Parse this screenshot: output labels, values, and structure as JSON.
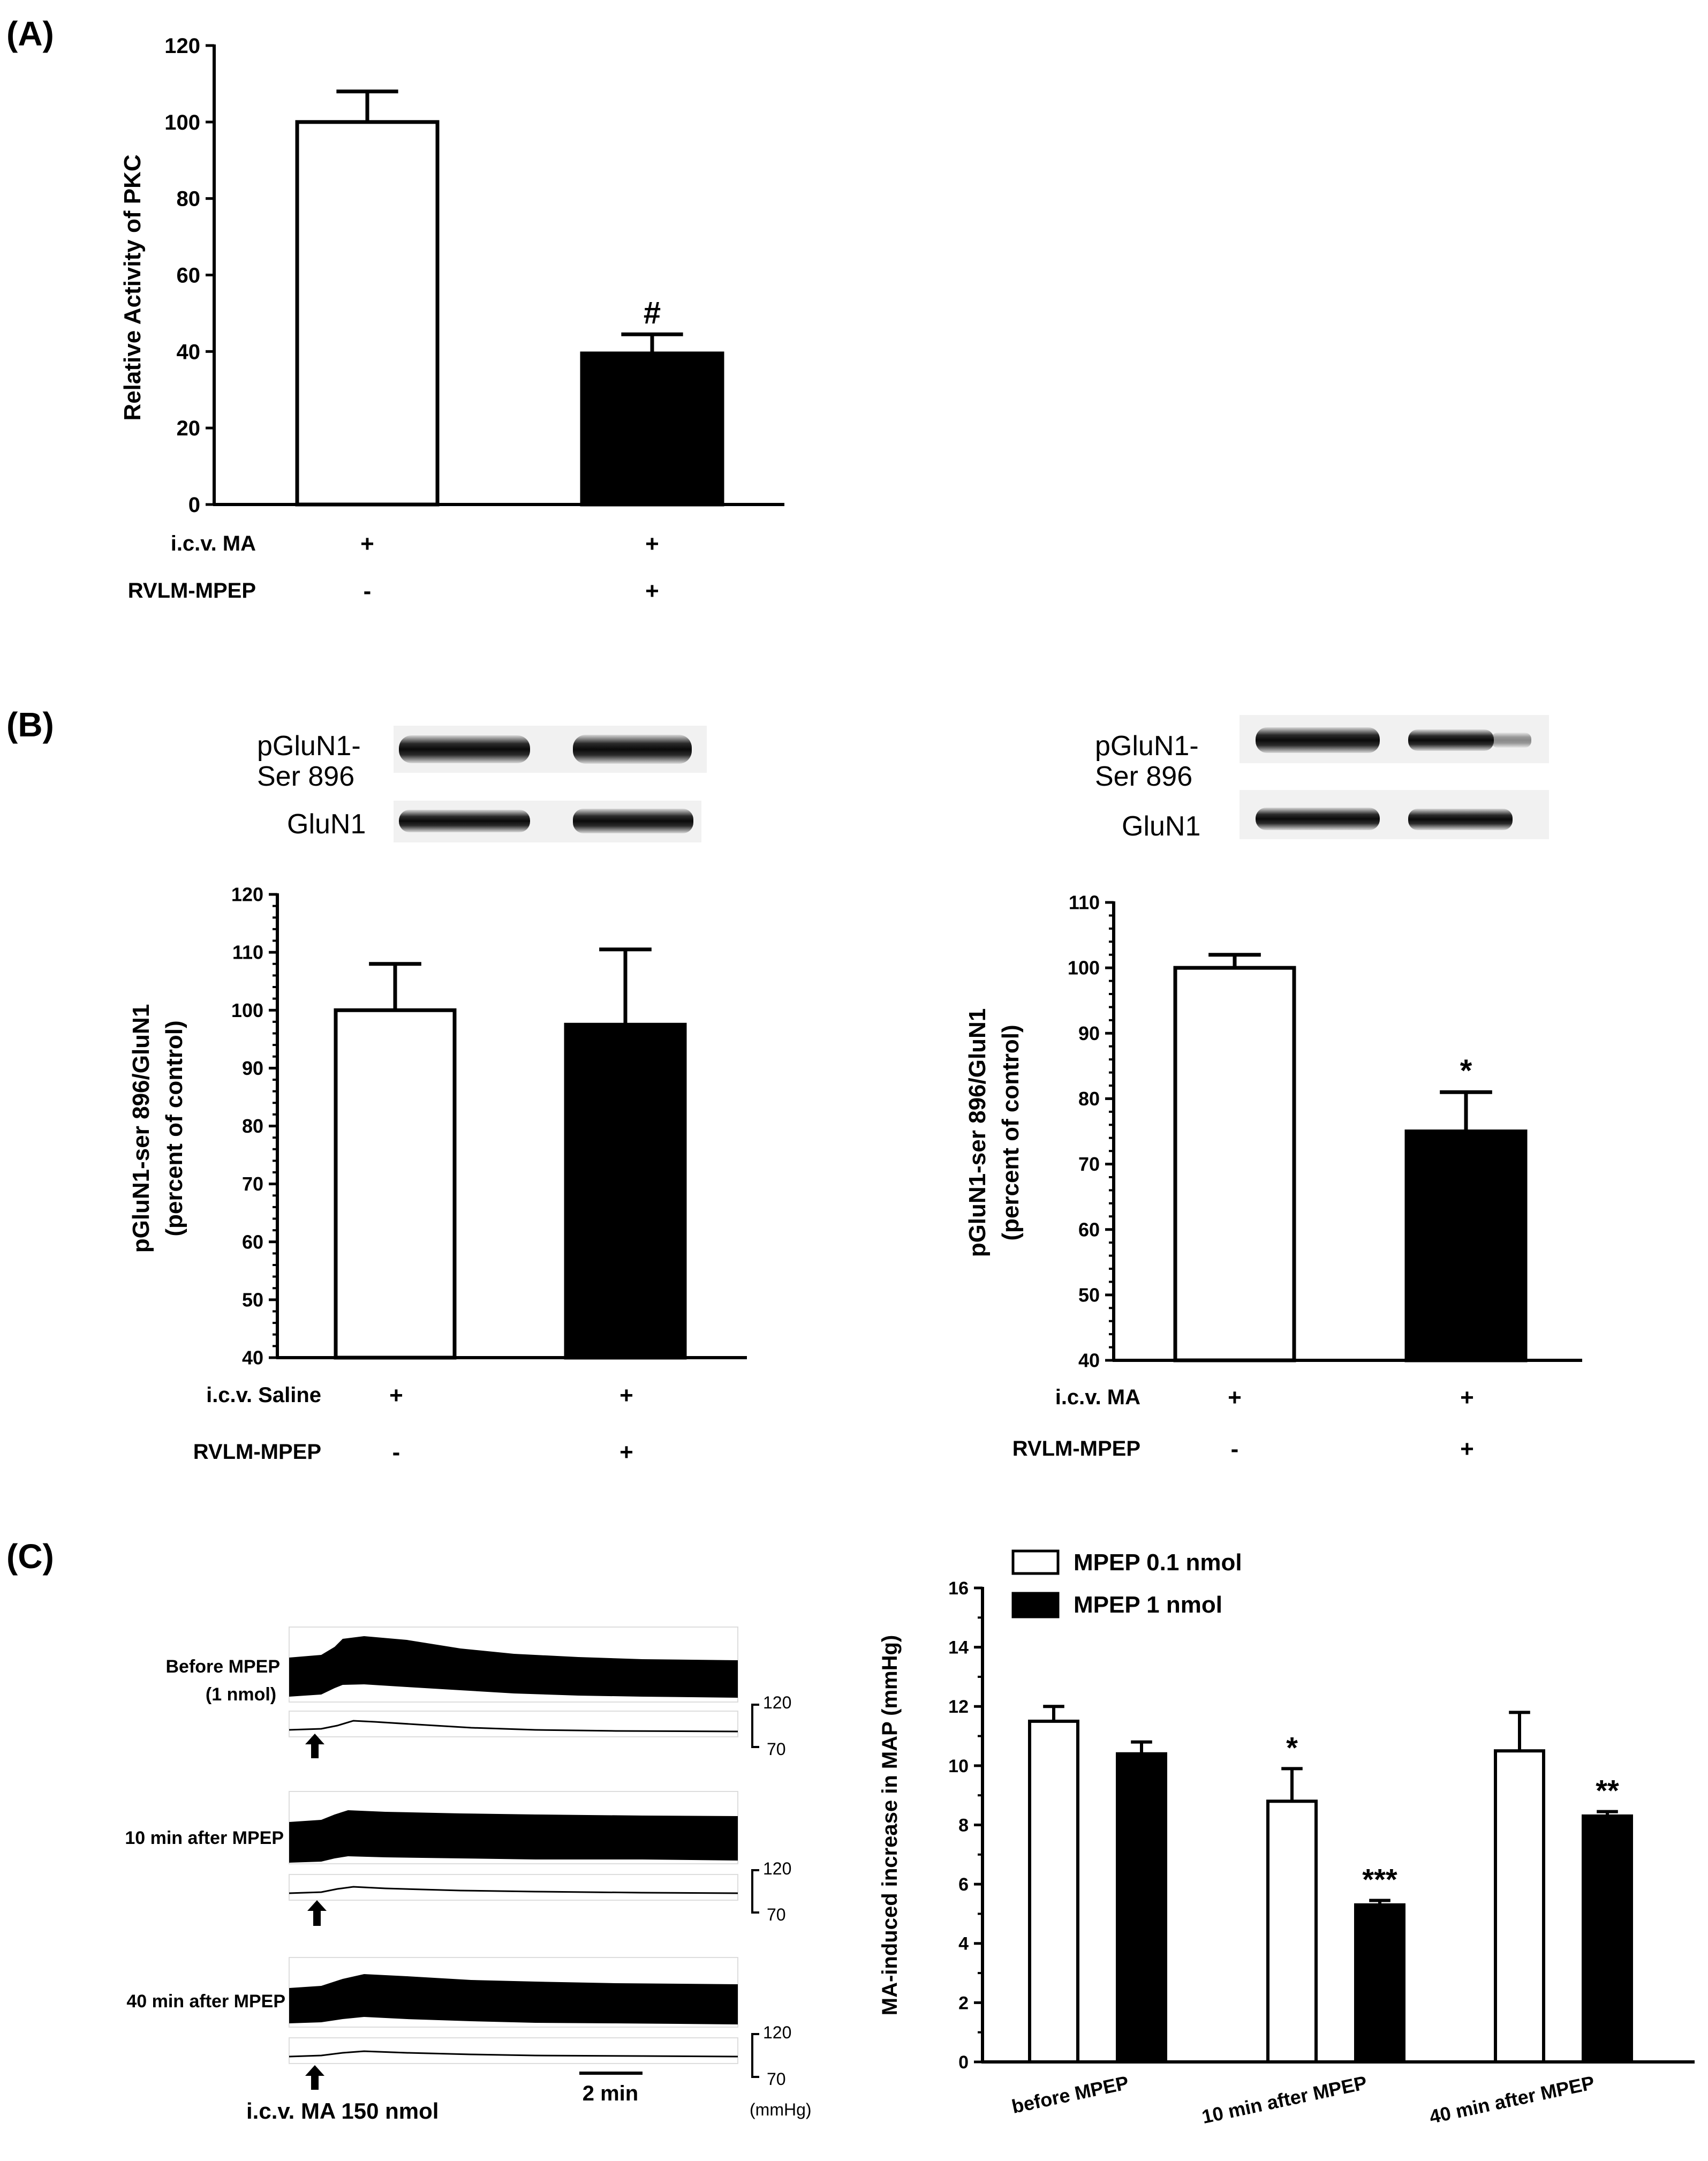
{
  "panels": {
    "A": {
      "label": "(A)"
    },
    "B": {
      "label": "(B)"
    },
    "C": {
      "label": "(C)"
    }
  },
  "chart_data": [
    {
      "id": "A",
      "type": "bar",
      "ylabel": "Relative Activity of PKC",
      "ylim": [
        0,
        120
      ],
      "yticks": [
        0,
        20,
        40,
        60,
        80,
        100,
        120
      ],
      "values": [
        100,
        39.5
      ],
      "errors": [
        8,
        5
      ],
      "fills": [
        "#ffffff",
        "#000000"
      ],
      "annotations": [
        "",
        "#"
      ],
      "conditions": [
        {
          "label": "i.c.v. MA",
          "signs": [
            "+",
            "+"
          ]
        },
        {
          "label": "RVLM-MPEP",
          "signs": [
            "-",
            "+"
          ]
        }
      ]
    },
    {
      "id": "B-left",
      "type": "bar",
      "ylabel": "pGluN1-ser 896/GluN1",
      "ylabel2": "(percent of control)",
      "ylim": [
        40,
        120
      ],
      "yticks": [
        40,
        50,
        60,
        70,
        80,
        90,
        100,
        110,
        120
      ],
      "values": [
        100,
        97.5
      ],
      "errors": [
        8,
        13
      ],
      "fills": [
        "#ffffff",
        "#000000"
      ],
      "annotations": [
        "",
        ""
      ],
      "conditions": [
        {
          "label": "i.c.v. Saline",
          "signs": [
            "+",
            "+"
          ]
        },
        {
          "label": "RVLM-MPEP",
          "signs": [
            "-",
            "+"
          ]
        }
      ],
      "blots": [
        {
          "label": "pGluN1-Ser 896"
        },
        {
          "label": "GluN1"
        }
      ]
    },
    {
      "id": "B-right",
      "type": "bar",
      "ylabel": "pGluN1-ser 896/GluN1",
      "ylabel2": "(percent of control)",
      "ylim": [
        40,
        110
      ],
      "yticks": [
        40,
        50,
        60,
        70,
        80,
        90,
        100,
        110
      ],
      "values": [
        100,
        75
      ],
      "errors": [
        2,
        6
      ],
      "fills": [
        "#ffffff",
        "#000000"
      ],
      "annotations": [
        "",
        "*"
      ],
      "conditions": [
        {
          "label": "i.c.v. MA",
          "signs": [
            "+",
            "+"
          ]
        },
        {
          "label": "RVLM-MPEP",
          "signs": [
            "-",
            "+"
          ]
        }
      ],
      "blots": [
        {
          "label": "pGluN1-Ser 896"
        },
        {
          "label": "GluN1"
        }
      ]
    },
    {
      "id": "C",
      "type": "bar",
      "ylabel": "MA-induced increase in MAP (mmHg)",
      "ylim": [
        0,
        16
      ],
      "yticks": [
        0,
        2,
        4,
        6,
        8,
        10,
        12,
        14,
        16
      ],
      "categories": [
        "before MPEP",
        "10 min after MPEP",
        "40 min after MPEP"
      ],
      "series": [
        {
          "name": "MPEP 0.1 nmol",
          "color": "#ffffff",
          "values": [
            11.5,
            8.8,
            10.5
          ],
          "errors": [
            0.5,
            1.1,
            1.3
          ],
          "annotations": [
            "",
            "*",
            ""
          ]
        },
        {
          "name": "MPEP 1 nmol",
          "color": "#000000",
          "values": [
            10.4,
            5.3,
            8.3
          ],
          "errors": [
            0.4,
            0.15,
            0.15
          ],
          "annotations": [
            "",
            "***",
            "**"
          ]
        }
      ],
      "legend": "top-left"
    }
  ],
  "traces": {
    "rows": [
      {
        "label": "Before MPEP",
        "label2": "(1 nmol)"
      },
      {
        "label": "10 min after MPEP",
        "label2": ""
      },
      {
        "label": "40 min after MPEP",
        "label2": ""
      }
    ],
    "scale_high": "120",
    "scale_low": "70",
    "unit": "(mmHg)",
    "time_scale": "2 min",
    "injection": "i.c.v. MA 150 nmol"
  }
}
